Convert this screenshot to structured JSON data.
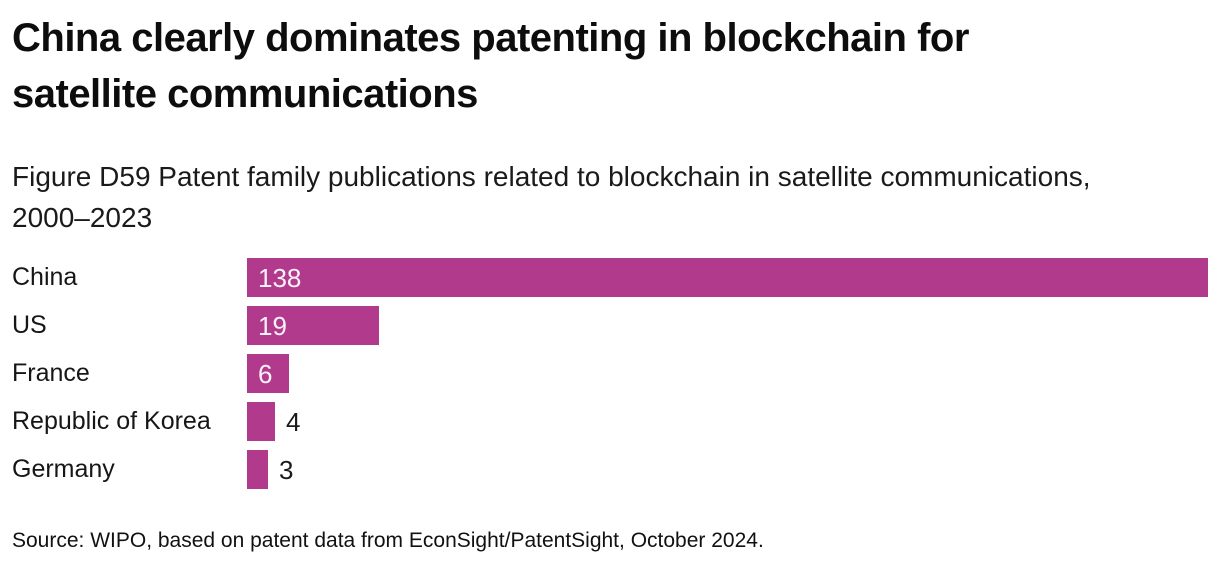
{
  "accent_color": "#b23a8d",
  "chart_data": {
    "type": "bar",
    "orientation": "horizontal",
    "title": "China clearly dominates patenting in blockchain for satellite communications",
    "subtitle": "Figure D59 Patent family publications related to blockchain in satellite communications, 2000–2023",
    "categories": [
      "China",
      "US",
      "France",
      "Republic of Korea",
      "Germany"
    ],
    "values": [
      138,
      19,
      6,
      4,
      3
    ],
    "xlim": [
      0,
      138
    ],
    "bar_color": "#b23a8d",
    "value_label_inside_color": "#faf2f8",
    "value_label_outside_color": "#1a1a1a",
    "grid": false,
    "legend": "none",
    "source": "Source: WIPO, based on patent data from EconSight/PatentSight, October 2024."
  }
}
